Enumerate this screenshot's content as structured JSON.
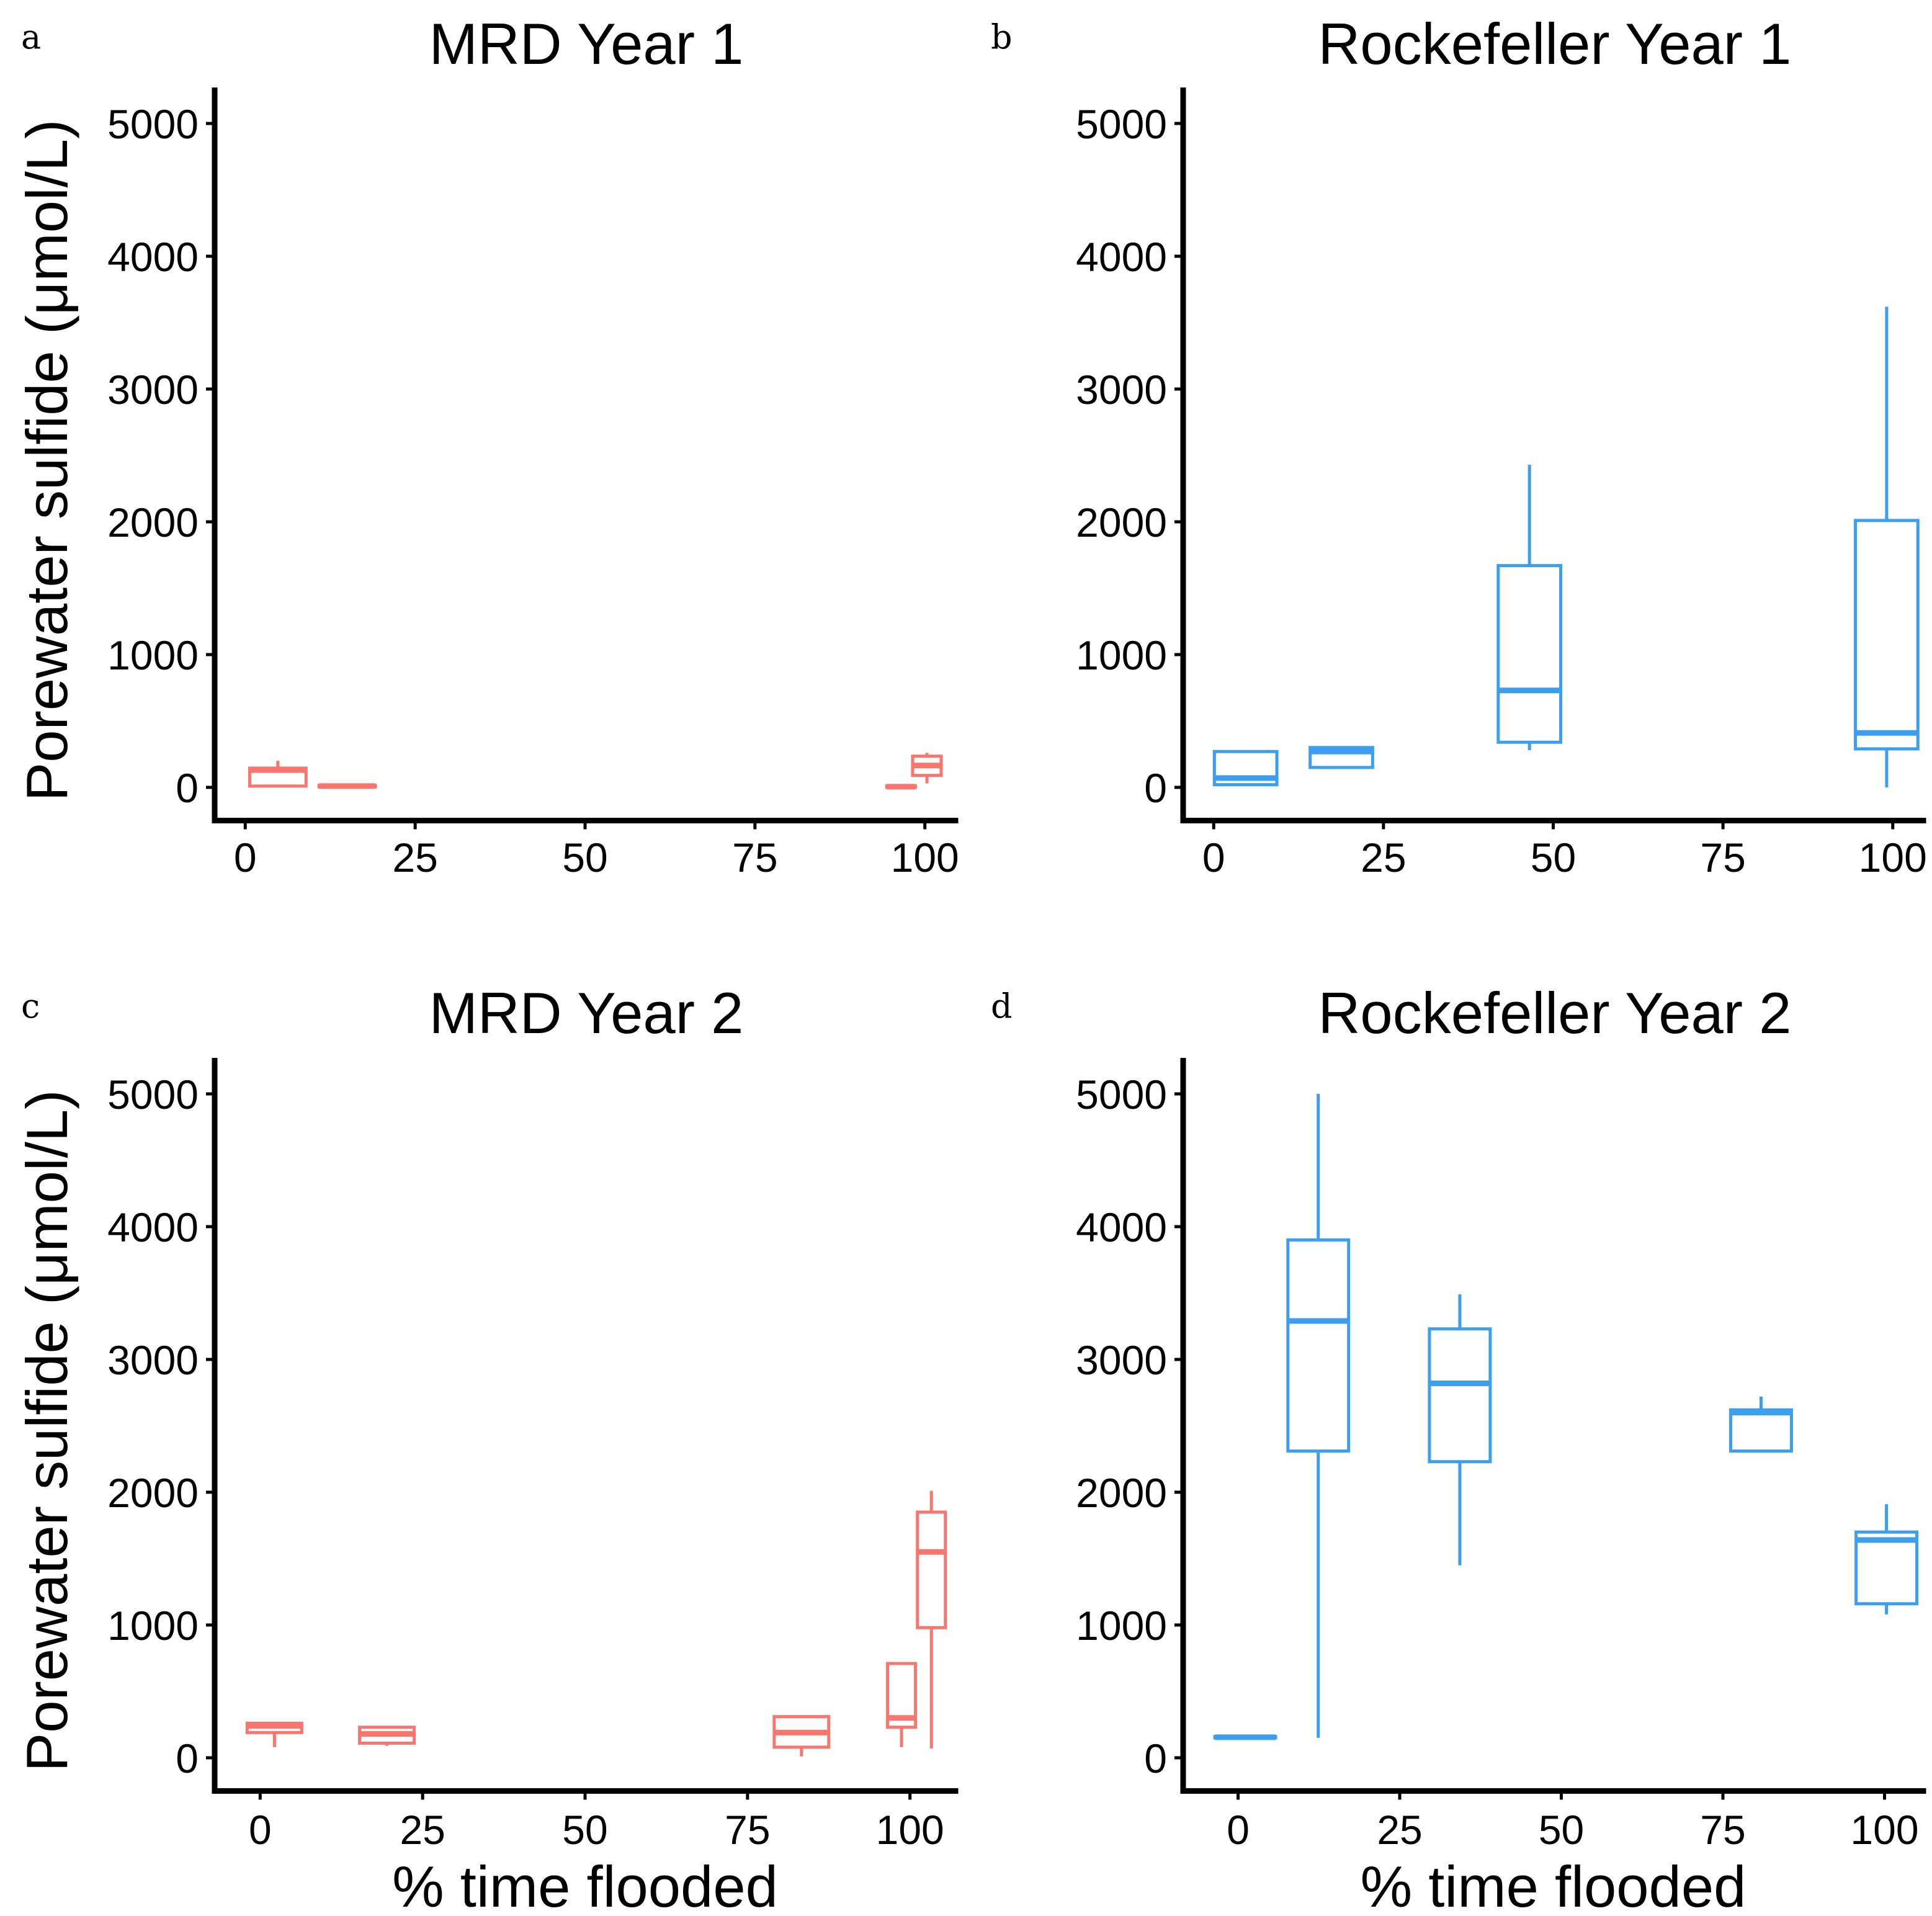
{
  "colors": {
    "MRD": "#F8766D",
    "Rockefeller": "#3C9EEE"
  },
  "chart_data": [
    {
      "type": "box",
      "panel_label": "a",
      "title": "MRD Year 1",
      "xlabel": "",
      "ylabel": "Porewater sulfide (μmol/L)",
      "xlim": [
        -4.5,
        104.5
      ],
      "ylim": [
        -250,
        5250
      ],
      "xticks": [
        0,
        25,
        50,
        75,
        100
      ],
      "yticks": [
        0,
        1000,
        2000,
        3000,
        4000,
        5000
      ],
      "xtick_labels": [
        "0",
        "25",
        "50",
        "75",
        "100"
      ],
      "ytick_labels": [
        "0",
        "1000",
        "2000",
        "3000",
        "4000",
        "5000"
      ],
      "site": "MRD",
      "boxes": [
        {
          "x": 4.8,
          "width": 8.3,
          "min": 0,
          "q1": 10,
          "median": 130,
          "q3": 145,
          "max": 200
        },
        {
          "x": 15,
          "width": 8.3,
          "min": 5,
          "q1": 5,
          "median": 10,
          "q3": 15,
          "max": 18
        },
        {
          "x": 96.5,
          "width": 4.2,
          "min": 0,
          "q1": 0,
          "median": 5,
          "q3": 12,
          "max": 15
        },
        {
          "x": 100.3,
          "width": 4.2,
          "min": 30,
          "q1": 90,
          "median": 165,
          "q3": 235,
          "max": 260
        }
      ]
    },
    {
      "type": "box",
      "panel_label": "b",
      "title": "Rockefeller Year 1",
      "xlabel": "",
      "ylabel": "",
      "xlim": [
        -4.5,
        104.5
      ],
      "ylim": [
        -250,
        5250
      ],
      "xticks": [
        0,
        25,
        50,
        75,
        100
      ],
      "yticks": [
        0,
        1000,
        2000,
        3000,
        4000,
        5000
      ],
      "xtick_labels": [
        "0",
        "25",
        "50",
        "75",
        "100"
      ],
      "ytick_labels": [
        "0",
        "1000",
        "2000",
        "3000",
        "4000",
        "5000"
      ],
      "site": "Rockefeller",
      "boxes": [
        {
          "x": 4.7,
          "width": 9.2,
          "min": 10,
          "q1": 20,
          "median": 70,
          "q3": 270,
          "max": 280
        },
        {
          "x": 18.8,
          "width": 9.2,
          "min": 150,
          "q1": 150,
          "median": 270,
          "q3": 300,
          "max": 310
        },
        {
          "x": 46.5,
          "width": 9.2,
          "min": 280,
          "q1": 340,
          "median": 730,
          "q3": 1670,
          "max": 2430
        },
        {
          "x": 99.1,
          "width": 9.2,
          "min": 0,
          "q1": 290,
          "median": 410,
          "q3": 2010,
          "max": 3620
        }
      ]
    },
    {
      "type": "box",
      "panel_label": "c",
      "title": "MRD Year 2",
      "xlabel": "% time flooded",
      "ylabel": "Porewater sulfide (μmol/L)",
      "xlim": [
        -7,
        107
      ],
      "ylim": [
        -250,
        5250
      ],
      "xticks": [
        0,
        25,
        50,
        75,
        100
      ],
      "yticks": [
        0,
        1000,
        2000,
        3000,
        4000,
        5000
      ],
      "xtick_labels": [
        "0",
        "25",
        "50",
        "75",
        "100"
      ],
      "ytick_labels": [
        "0",
        "1000",
        "2000",
        "3000",
        "4000",
        "5000"
      ],
      "site": "MRD",
      "boxes": [
        {
          "x": 2.2,
          "width": 8.4,
          "min": 80,
          "q1": 190,
          "median": 240,
          "q3": 260,
          "max": 270
        },
        {
          "x": 19.5,
          "width": 8.4,
          "min": 90,
          "q1": 110,
          "median": 180,
          "q3": 230,
          "max": 240
        },
        {
          "x": 83.3,
          "width": 8.4,
          "min": 10,
          "q1": 80,
          "median": 190,
          "q3": 310,
          "max": 320
        },
        {
          "x": 98.7,
          "width": 4.3,
          "min": 80,
          "q1": 230,
          "median": 300,
          "q3": 710,
          "max": 715
        },
        {
          "x": 103.3,
          "width": 4.3,
          "min": 70,
          "q1": 980,
          "median": 1550,
          "q3": 1850,
          "max": 2010
        }
      ]
    },
    {
      "type": "box",
      "panel_label": "d",
      "title": "Rockefeller Year 2",
      "xlabel": "% time flooded",
      "ylabel": "",
      "xlim": [
        -8.5,
        106
      ],
      "ylim": [
        -250,
        5250
      ],
      "xticks": [
        0,
        25,
        50,
        75,
        100
      ],
      "yticks": [
        0,
        1000,
        2000,
        3000,
        4000,
        5000
      ],
      "xtick_labels": [
        "0",
        "25",
        "50",
        "75",
        "100"
      ],
      "ytick_labels": [
        "0",
        "1000",
        "2000",
        "3000",
        "4000",
        "5000"
      ],
      "site": "Rockefeller",
      "boxes": [
        {
          "x": 1.1,
          "width": 9.4,
          "min": 150,
          "q1": 150,
          "median": 155,
          "q3": 160,
          "max": 165
        },
        {
          "x": 12.4,
          "width": 9.4,
          "min": 150,
          "q1": 2310,
          "median": 3290,
          "q3": 3900,
          "max": 5000
        },
        {
          "x": 34.3,
          "width": 9.4,
          "min": 1450,
          "q1": 2230,
          "median": 2820,
          "q3": 3230,
          "max": 3490
        },
        {
          "x": 80.9,
          "width": 9.4,
          "min": 2300,
          "q1": 2310,
          "median": 2600,
          "q3": 2620,
          "max": 2720
        },
        {
          "x": 100.3,
          "width": 9.4,
          "min": 1080,
          "q1": 1160,
          "median": 1640,
          "q3": 1700,
          "max": 1910
        }
      ]
    }
  ]
}
